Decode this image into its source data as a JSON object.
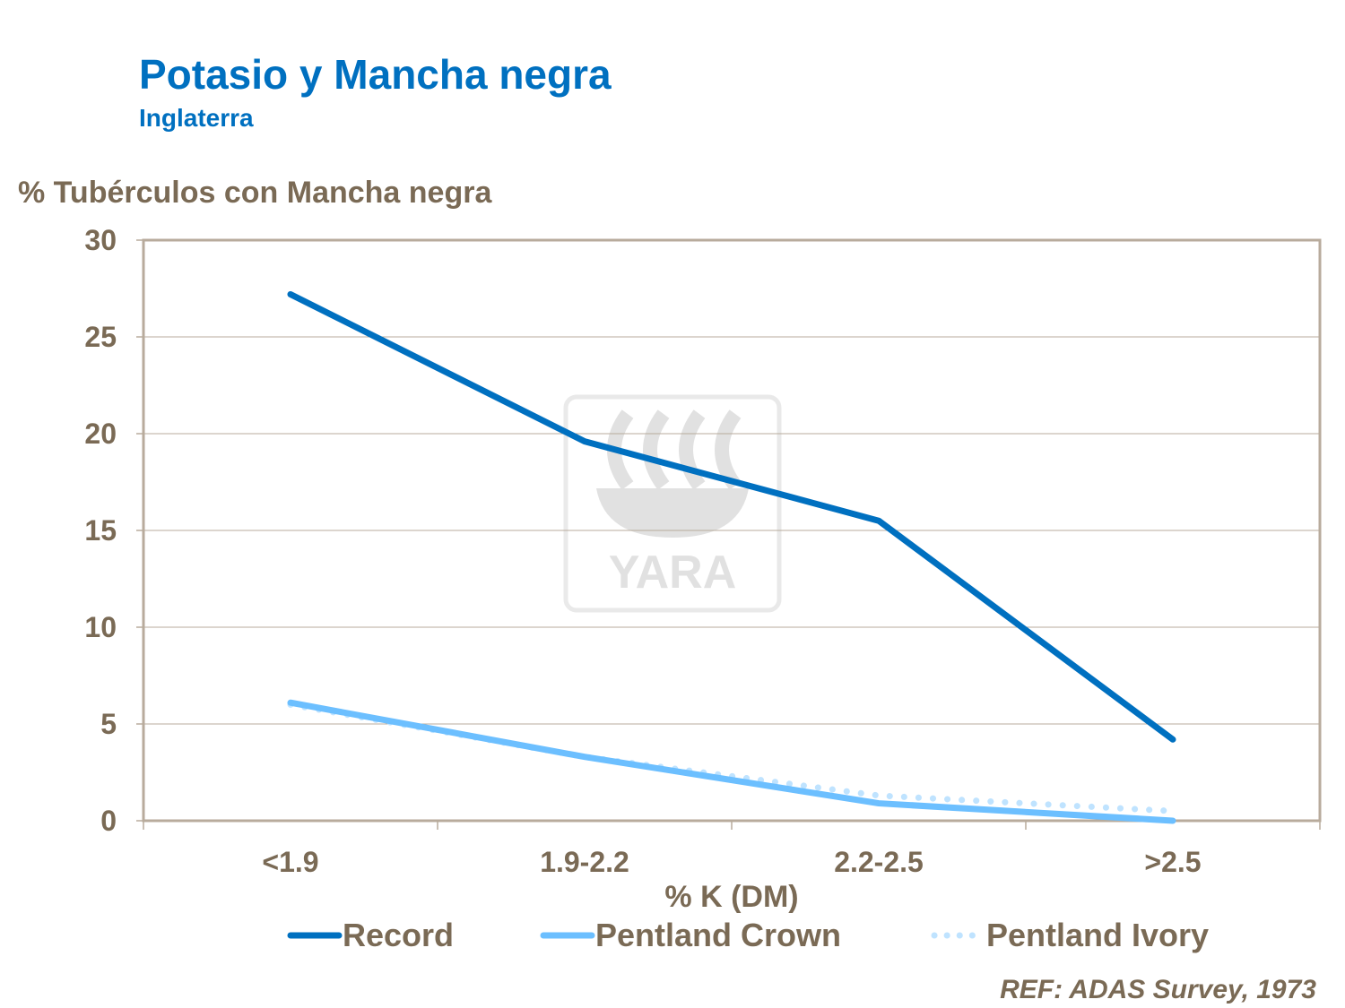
{
  "chart_data": {
    "type": "line",
    "title": "Potasio y Mancha negra",
    "subtitle": "Inglaterra",
    "ylabel": "% Tubérculos con Mancha negra",
    "xlabel": "% K (DM)",
    "categories": [
      "<1.9",
      "1.9-2.2",
      "2.2-2.5",
      ">2.5"
    ],
    "ylim": [
      0,
      30
    ],
    "yticks": [
      0,
      5,
      10,
      15,
      20,
      25,
      30
    ],
    "grid": true,
    "legend": "bottom",
    "series": [
      {
        "name": "Record",
        "values": [
          27.2,
          19.6,
          15.5,
          4.2
        ],
        "color": "#0070c0",
        "style": "solid"
      },
      {
        "name": "Pentland Crown",
        "values": [
          6.1,
          3.3,
          0.9,
          0.0
        ],
        "color": "#6cbfff",
        "style": "solid"
      },
      {
        "name": "Pentland Ivory",
        "values": [
          6.0,
          3.3,
          1.3,
          0.5
        ],
        "color": "#bfe3ff",
        "style": "dotted"
      }
    ],
    "annotation": "REF: ADAS Survey,  1973",
    "watermark": "YARA"
  }
}
